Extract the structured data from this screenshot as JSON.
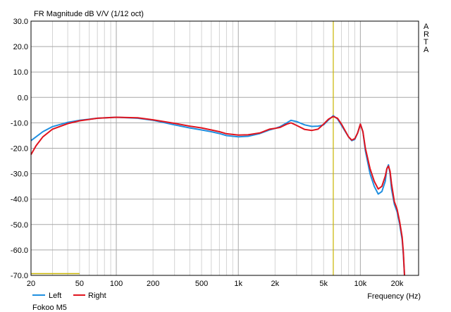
{
  "chart_data": {
    "type": "line",
    "title": "FR Magnitude dB V/V (1/12 oct)",
    "xlabel": "Frequency (Hz)",
    "ylabel": "",
    "xscale": "log",
    "xlim": [
      20,
      30000
    ],
    "ylim": [
      -70,
      30
    ],
    "x_ticks": [
      {
        "value": 20,
        "label": "20"
      },
      {
        "value": 50,
        "label": "50"
      },
      {
        "value": 100,
        "label": "100"
      },
      {
        "value": 200,
        "label": "200"
      },
      {
        "value": 500,
        "label": "500"
      },
      {
        "value": 1000,
        "label": "1k"
      },
      {
        "value": 2000,
        "label": "2k"
      },
      {
        "value": 5000,
        "label": "5k"
      },
      {
        "value": 10000,
        "label": "10k"
      },
      {
        "value": 20000,
        "label": "20k"
      }
    ],
    "y_ticks": [
      "30.0",
      "20.0",
      "10.0",
      "0.0",
      "-10.0",
      "-20.0",
      "-30.0",
      "-40.0",
      "-50.0",
      "-60.0",
      "-70.0"
    ],
    "y_tick_values": [
      30,
      20,
      10,
      0,
      -10,
      -20,
      -30,
      -40,
      -50,
      -60,
      -70
    ],
    "grid": true,
    "marker_frequency": 6000,
    "marker_color": "#c8b400",
    "reference_segment": {
      "x": [
        20,
        50
      ],
      "y": -69.3,
      "color": "#c8b400"
    },
    "legend_placement": "bottom-left",
    "side_label": "A\nR\nT\nA",
    "footer_label": "Fokoo M5",
    "series": [
      {
        "name": "Left",
        "color": "#1f8fe0",
        "points": [
          [
            20,
            -17
          ],
          [
            25,
            -13.5
          ],
          [
            30,
            -11.5
          ],
          [
            40,
            -9.8
          ],
          [
            50,
            -9
          ],
          [
            70,
            -8.2
          ],
          [
            100,
            -7.8
          ],
          [
            150,
            -8.2
          ],
          [
            200,
            -9
          ],
          [
            300,
            -10.8
          ],
          [
            400,
            -12
          ],
          [
            500,
            -12.8
          ],
          [
            600,
            -13.5
          ],
          [
            700,
            -14.2
          ],
          [
            800,
            -15
          ],
          [
            1000,
            -15.5
          ],
          [
            1200,
            -15.3
          ],
          [
            1500,
            -14.2
          ],
          [
            1800,
            -12.8
          ],
          [
            2000,
            -12.2
          ],
          [
            2200,
            -11.5
          ],
          [
            2500,
            -10
          ],
          [
            2700,
            -9
          ],
          [
            3000,
            -9.5
          ],
          [
            3500,
            -10.8
          ],
          [
            4000,
            -11.4
          ],
          [
            4500,
            -11.3
          ],
          [
            5000,
            -10.8
          ],
          [
            5500,
            -8.8
          ],
          [
            6000,
            -7.2
          ],
          [
            6500,
            -8.5
          ],
          [
            7000,
            -11
          ],
          [
            8000,
            -15.5
          ],
          [
            8500,
            -17
          ],
          [
            9000,
            -16.5
          ],
          [
            9500,
            -14
          ],
          [
            10000,
            -10.5
          ],
          [
            10500,
            -13.5
          ],
          [
            11000,
            -21
          ],
          [
            12000,
            -30
          ],
          [
            13000,
            -35
          ],
          [
            14000,
            -38
          ],
          [
            15000,
            -37
          ],
          [
            16000,
            -33
          ],
          [
            16500,
            -28
          ],
          [
            17000,
            -26.5
          ],
          [
            17500,
            -30
          ],
          [
            18000,
            -36
          ],
          [
            19000,
            -42
          ],
          [
            20000,
            -45
          ],
          [
            21000,
            -50
          ],
          [
            22000,
            -56
          ],
          [
            22500,
            -62
          ],
          [
            23000,
            -70
          ]
        ]
      },
      {
        "name": "Right",
        "color": "#e0141e",
        "points": [
          [
            20,
            -22.5
          ],
          [
            22,
            -19
          ],
          [
            25,
            -15.5
          ],
          [
            30,
            -12.5
          ],
          [
            40,
            -10.3
          ],
          [
            50,
            -9.2
          ],
          [
            70,
            -8.2
          ],
          [
            100,
            -7.8
          ],
          [
            150,
            -8
          ],
          [
            200,
            -8.8
          ],
          [
            300,
            -10.2
          ],
          [
            400,
            -11.3
          ],
          [
            500,
            -12
          ],
          [
            600,
            -12.8
          ],
          [
            700,
            -13.5
          ],
          [
            800,
            -14.3
          ],
          [
            1000,
            -14.8
          ],
          [
            1200,
            -14.7
          ],
          [
            1500,
            -14
          ],
          [
            1800,
            -12.5
          ],
          [
            2000,
            -12.2
          ],
          [
            2200,
            -11.8
          ],
          [
            2500,
            -10.5
          ],
          [
            2700,
            -10
          ],
          [
            3000,
            -11
          ],
          [
            3500,
            -12.6
          ],
          [
            4000,
            -13
          ],
          [
            4500,
            -12.5
          ],
          [
            5000,
            -10.5
          ],
          [
            5500,
            -8.5
          ],
          [
            6000,
            -7.5
          ],
          [
            6500,
            -8.2
          ],
          [
            7000,
            -10.5
          ],
          [
            8000,
            -15.5
          ],
          [
            8500,
            -16.8
          ],
          [
            9000,
            -16.2
          ],
          [
            9500,
            -14
          ],
          [
            10000,
            -10.5
          ],
          [
            10500,
            -13.5
          ],
          [
            11000,
            -20
          ],
          [
            12000,
            -28
          ],
          [
            13000,
            -33
          ],
          [
            14000,
            -36
          ],
          [
            15000,
            -35
          ],
          [
            16000,
            -31
          ],
          [
            16500,
            -28
          ],
          [
            17000,
            -27
          ],
          [
            17500,
            -29
          ],
          [
            18000,
            -34
          ],
          [
            19000,
            -41
          ],
          [
            20000,
            -44
          ],
          [
            21000,
            -49
          ],
          [
            22000,
            -55
          ],
          [
            22500,
            -61
          ],
          [
            23000,
            -70
          ]
        ]
      }
    ]
  }
}
